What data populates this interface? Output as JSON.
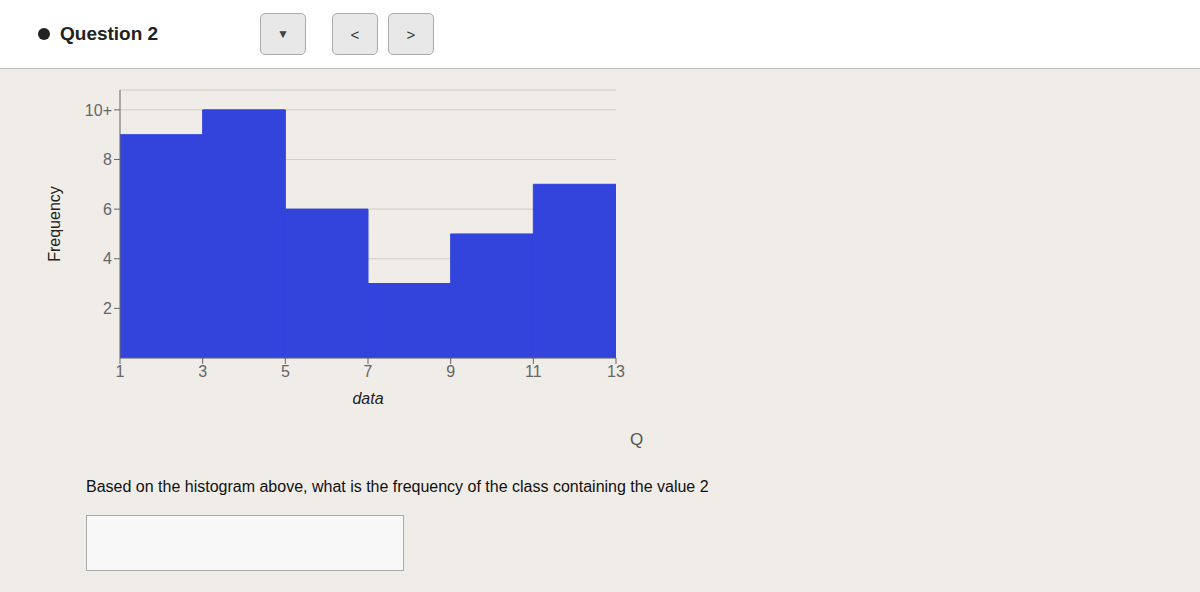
{
  "chart_data": {
    "type": "histogram",
    "title": "Question 2",
    "bins": [
      1,
      3,
      5,
      7,
      9,
      11,
      13
    ],
    "values": [
      9,
      10,
      6,
      3,
      5,
      7
    ],
    "color": "#3344DD",
    "xlabel": "data",
    "ylabel": "Frequency",
    "xlim": [
      1,
      13
    ],
    "ylim": [
      0,
      10.8
    ],
    "xticks": [
      1,
      3,
      5,
      7,
      9,
      11,
      13
    ],
    "yticks": [
      2,
      4,
      6,
      8,
      {
        "value": 10,
        "label": "10+"
      }
    ],
    "grid": true,
    "annotations": [
      "▼",
      "<",
      ">",
      "Based on the histogram above, what is the frequency of the class containing the value 2",
      "Q"
    ]
  }
}
